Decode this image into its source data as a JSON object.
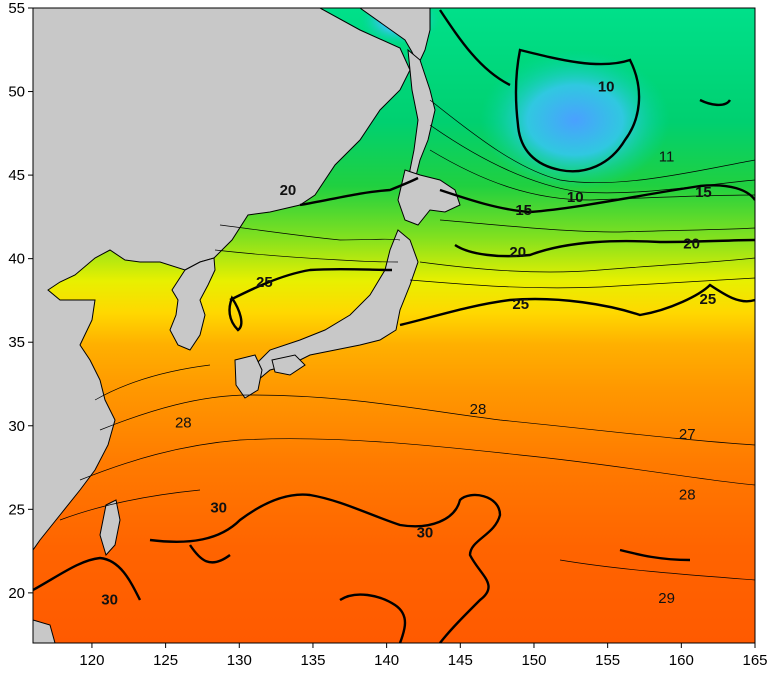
{
  "map": {
    "x_axis": {
      "range": [
        116,
        165
      ],
      "ticks": [
        120,
        125,
        130,
        135,
        140,
        145,
        150,
        155,
        160,
        165
      ]
    },
    "y_axis": {
      "range": [
        17,
        55
      ],
      "ticks": [
        20,
        25,
        30,
        35,
        40,
        45,
        50,
        55
      ]
    },
    "land_color": "#c8c8c8",
    "contour_labels": [
      {
        "text": "10",
        "lon": 154.9,
        "lat": 50.3
      },
      {
        "text": "10",
        "lon": 152.8,
        "lat": 43.7
      },
      {
        "text": "11",
        "lon": 159.0,
        "lat": 46.1
      },
      {
        "text": "15",
        "lon": 149.3,
        "lat": 42.9
      },
      {
        "text": "15",
        "lon": 161.5,
        "lat": 44.0
      },
      {
        "text": "20",
        "lon": 133.3,
        "lat": 44.1
      },
      {
        "text": "20",
        "lon": 148.9,
        "lat": 40.4
      },
      {
        "text": "20",
        "lon": 160.7,
        "lat": 40.9
      },
      {
        "text": "25",
        "lon": 131.7,
        "lat": 38.6
      },
      {
        "text": "25",
        "lon": 149.1,
        "lat": 37.3
      },
      {
        "text": "25",
        "lon": 161.8,
        "lat": 37.6
      },
      {
        "text": "27",
        "lon": 160.4,
        "lat": 29.5
      },
      {
        "text": "28",
        "lon": 126.2,
        "lat": 30.2
      },
      {
        "text": "28",
        "lon": 146.2,
        "lat": 31.0
      },
      {
        "text": "28",
        "lon": 160.4,
        "lat": 25.9
      },
      {
        "text": "29",
        "lon": 159.0,
        "lat": 19.7
      },
      {
        "text": "30",
        "lon": 128.6,
        "lat": 25.1
      },
      {
        "text": "30",
        "lon": 142.6,
        "lat": 23.6
      },
      {
        "text": "30",
        "lon": 121.2,
        "lat": 19.6
      }
    ]
  }
}
